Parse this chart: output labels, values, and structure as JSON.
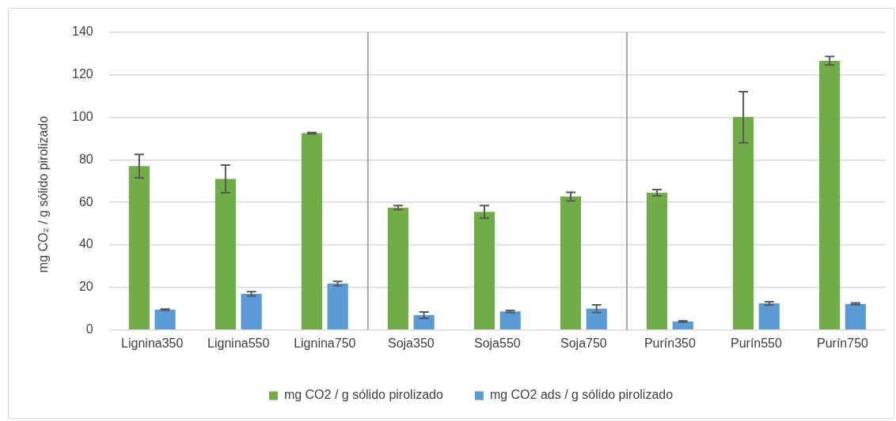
{
  "chart_data": {
    "type": "bar",
    "ylabel": "mg CO₂ / g sólido pirolizado",
    "categories": [
      "Lignina350",
      "Lignina550",
      "Lignina750",
      "Soja350",
      "Soja550",
      "Soja750",
      "Purín350",
      "Purín550",
      "Purín750"
    ],
    "series": [
      {
        "name": "mg CO2 / g sólido pirolizado",
        "color": "#70ad47",
        "values": [
          77,
          71,
          92.5,
          57.5,
          55.5,
          62.7,
          64.5,
          100,
          126.5
        ],
        "errors": [
          5.5,
          6.5,
          0.3,
          1,
          3,
          2,
          1.5,
          12,
          2
        ]
      },
      {
        "name": "mg CO2 ads / g sólido pirolizado",
        "color": "#5b9bd5",
        "values": [
          9.6,
          17,
          21.8,
          7,
          8.7,
          10,
          4,
          12.5,
          12.3
        ],
        "errors": [
          0.3,
          1,
          1,
          1.5,
          0.5,
          1.8,
          0.3,
          0.8,
          0.4
        ]
      }
    ],
    "ylim": [
      0,
      140
    ],
    "yticks": [
      0,
      20,
      40,
      60,
      80,
      100,
      120,
      140
    ],
    "grid": "y",
    "legend": "bottom"
  }
}
